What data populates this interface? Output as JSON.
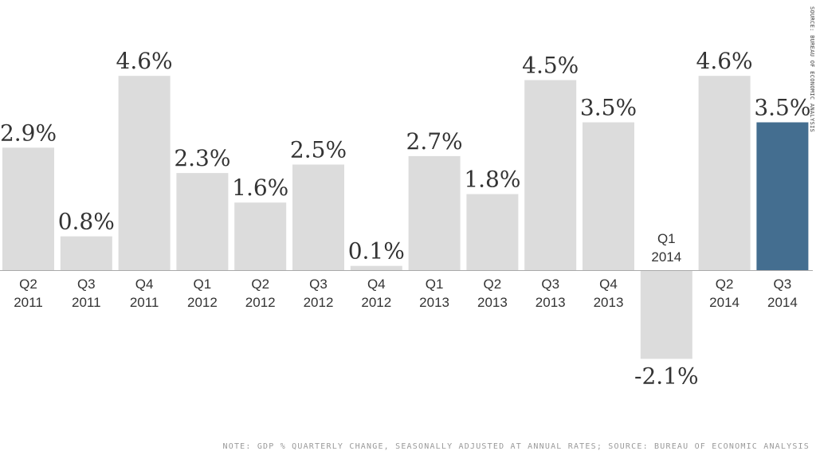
{
  "chart_data": {
    "type": "bar",
    "categories": [
      [
        "Q2",
        "2011"
      ],
      [
        "Q3",
        "2011"
      ],
      [
        "Q4",
        "2011"
      ],
      [
        "Q1",
        "2012"
      ],
      [
        "Q2",
        "2012"
      ],
      [
        "Q3",
        "2012"
      ],
      [
        "Q4",
        "2012"
      ],
      [
        "Q1",
        "2013"
      ],
      [
        "Q2",
        "2013"
      ],
      [
        "Q3",
        "2013"
      ],
      [
        "Q4",
        "2013"
      ],
      [
        "Q1",
        "2014"
      ],
      [
        "Q2",
        "2014"
      ],
      [
        "Q3",
        "2014"
      ]
    ],
    "values": [
      2.9,
      0.8,
      4.6,
      2.3,
      1.6,
      2.5,
      0.1,
      2.7,
      1.8,
      4.5,
      3.5,
      -2.1,
      4.6,
      3.5
    ],
    "labels": [
      "2.9%",
      "0.8%",
      "4.6%",
      "2.3%",
      "1.6%",
      "2.5%",
      "0.1%",
      "2.7%",
      "1.8%",
      "4.5%",
      "3.5%",
      "-2.1%",
      "4.6%",
      "3.5%"
    ],
    "highlight_index": 13,
    "bar_color": "#dcdcdc",
    "highlight_color": "#446e90",
    "ylim": [
      -2.1,
      4.6
    ],
    "grid": false,
    "title": "",
    "xlabel": "",
    "ylabel": ""
  },
  "footnote": "Note: GDP % quarterly change, seasonally adjusted at annual rates; Source: Bureau of Economic Analysis",
  "side_source": "Source: Bureau of Economic Analysis"
}
